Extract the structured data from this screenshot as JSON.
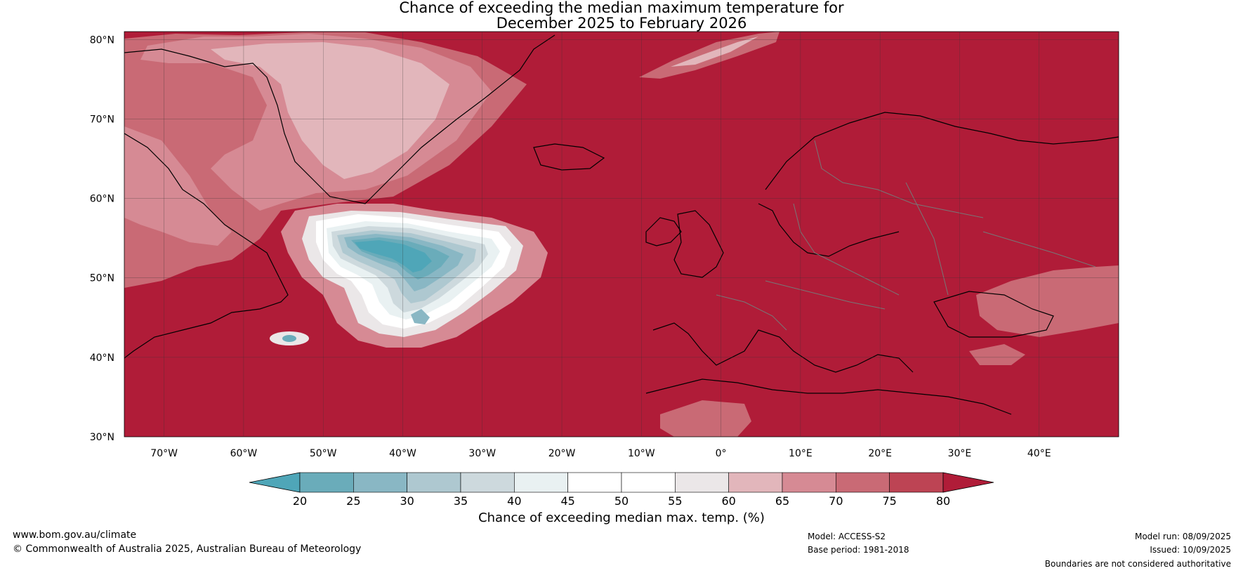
{
  "title_line1": "Chance of exceeding the median maximum temperature for",
  "title_line2": "December 2025 to February 2026",
  "map": {
    "lat_labels": [
      "80°N",
      "70°N",
      "60°N",
      "50°N",
      "40°N",
      "30°N"
    ],
    "lon_labels": [
      "70°W",
      "60°W",
      "50°W",
      "40°W",
      "30°W",
      "20°W",
      "10°W",
      "0°",
      "10°E",
      "20°E",
      "30°E",
      "40°E"
    ],
    "lat_range": [
      30,
      81
    ],
    "lon_range": [
      -75,
      50
    ],
    "dominant_category": "above 80%",
    "cool_anomaly_region": "North Atlantic south-east of Greenland"
  },
  "colorbar": {
    "ticks": [
      "20",
      "25",
      "30",
      "35",
      "40",
      "45",
      "50",
      "55",
      "60",
      "65",
      "70",
      "75",
      "80"
    ],
    "colors": [
      "#4fa6b8",
      "#6aacba",
      "#89b7c4",
      "#aec8d0",
      "#cdd9dd",
      "#e9f1f2",
      "#ffffff",
      "#ffffff",
      "#ebe7e8",
      "#e2b6bb",
      "#d68a94",
      "#c96a75",
      "#bd4454",
      "#b01c38"
    ],
    "label": "Chance of exceeding median max. temp. (%)"
  },
  "footer": {
    "website": "www.bom.gov.au/climate",
    "copyright": "© Commonwealth of Australia 2025, Australian Bureau of Meteorology",
    "model": "Model: ACCESS-S2",
    "base_period": "Base period: 1981-2018",
    "model_run": "Model run: 08/09/2025",
    "issued": "Issued: 10/09/2025",
    "disclaimer": "Boundaries are not considered authoritative"
  }
}
